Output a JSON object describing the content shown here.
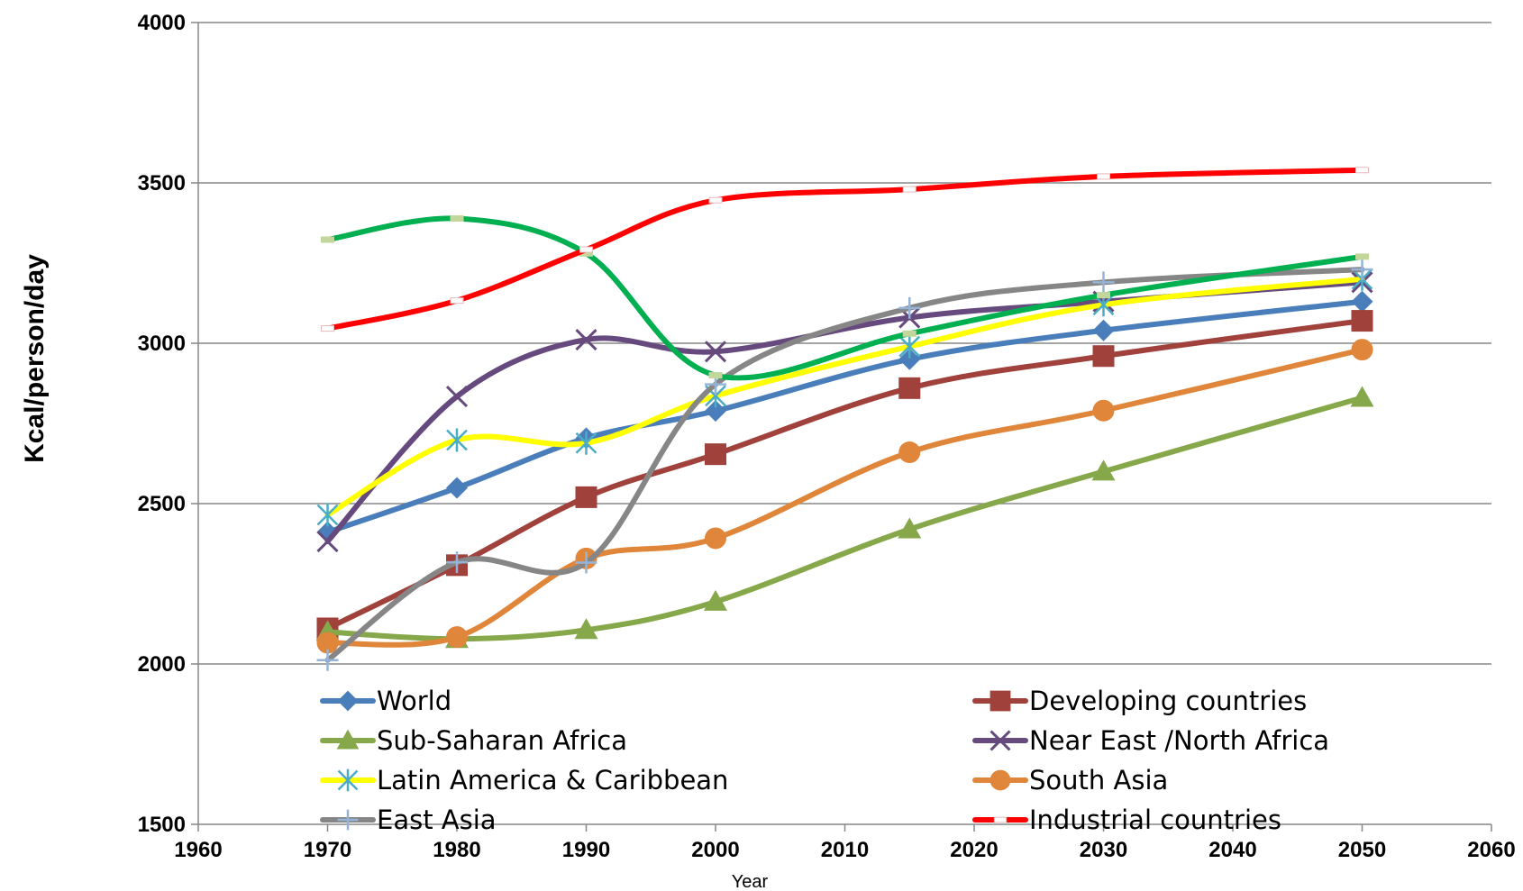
{
  "chart_data": {
    "type": "line",
    "title": "",
    "xlabel": "Year",
    "ylabel": "Kcal/person/day",
    "xlim": [
      1960,
      2060
    ],
    "ylim": [
      1500,
      4000
    ],
    "x_ticks": [
      1960,
      1970,
      1980,
      1990,
      2000,
      2010,
      2020,
      2030,
      2040,
      2050,
      2060
    ],
    "y_ticks": [
      1500,
      2000,
      2500,
      3000,
      3500,
      4000
    ],
    "grid": "horizontal",
    "legend_position": "bottom-inside",
    "x": [
      1970,
      1980,
      1990,
      2000,
      2015,
      2030,
      2050
    ],
    "series": [
      {
        "name": "World",
        "color": "#4A7EBB",
        "marker": "diamond",
        "values": [
          2411,
          2549,
          2704,
          2789,
          2950,
          3040,
          3130
        ]
      },
      {
        "name": "Developing countries",
        "color": "#A0413C",
        "marker": "square",
        "values": [
          2111,
          2308,
          2520,
          2654,
          2860,
          2960,
          3070
        ]
      },
      {
        "name": "Sub-Saharan Africa",
        "color": "#86A84A",
        "marker": "triangle",
        "values": [
          2100,
          2078,
          2106,
          2194,
          2420,
          2600,
          2830
        ]
      },
      {
        "name": "Near East /North Africa",
        "color": "#664A7E",
        "marker": "x",
        "values": [
          2382,
          2834,
          3011,
          2974,
          3080,
          3130,
          3190
        ]
      },
      {
        "name": "Latin America & Caribbean",
        "color": "#FFFF00",
        "marker": "asterisk",
        "values": [
          2465,
          2698,
          2689,
          2836,
          2990,
          3120,
          3200
        ]
      },
      {
        "name": "South Asia",
        "color": "#E0863A",
        "marker": "circle",
        "values": [
          2066,
          2084,
          2329,
          2392,
          2660,
          2790,
          2980
        ]
      },
      {
        "name": "East Asia",
        "color": "#868686",
        "marker": "plus",
        "values": [
          2012,
          2317,
          2316,
          2872,
          3110,
          3190,
          3230
        ]
      },
      {
        "name": "Industrial countries",
        "color": "#FF0000",
        "marker": "dash",
        "values": [
          3046,
          3133,
          3292,
          3446,
          3480,
          3520,
          3540
        ]
      },
      {
        "name": "",
        "color": "#00B050",
        "marker": "dash",
        "values": [
          3323,
          3389,
          3280,
          2900,
          3030,
          3150,
          3270
        ]
      }
    ]
  }
}
